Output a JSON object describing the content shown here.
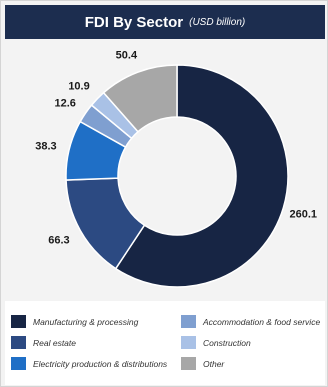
{
  "header": {
    "title": "FDI By Sector",
    "subtitle": "(USD billion)"
  },
  "colors": {
    "header_bg": "#1c2d4f",
    "background": "#f3f3f3"
  },
  "chart_data": {
    "type": "pie",
    "donut": true,
    "title": "FDI By Sector",
    "subtitle": "(USD billion)",
    "categories": [
      "Manufacturing & processing",
      "Real estate",
      "Electricity production & distributions",
      "Accommodation & food service",
      "Construction",
      "Other"
    ],
    "values": [
      260.1,
      66.3,
      38.3,
      12.6,
      10.9,
      50.4
    ],
    "value_labels": [
      "260.1",
      "66.3",
      "38.3",
      "12.6",
      "10.9",
      "50.4"
    ],
    "colors": [
      "#172544",
      "#2c4a82",
      "#1f6fc6",
      "#7f9fd0",
      "#a9c1e6",
      "#a7a7a7"
    ],
    "legend_position": "bottom"
  }
}
